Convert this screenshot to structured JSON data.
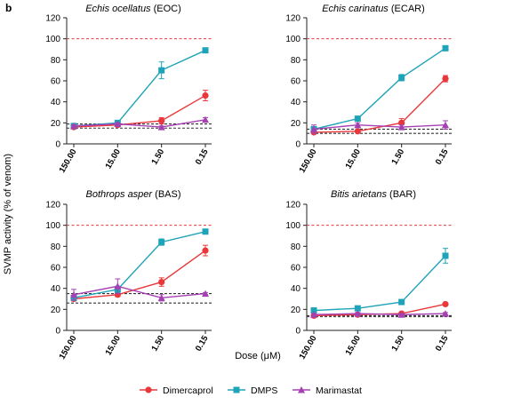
{
  "panel_label": "b",
  "ylabel": "SVMP activity (% of venom)",
  "xlabel": "Dose (μM)",
  "legend": [
    {
      "name": "Dimercaprol",
      "color": "#e8383b",
      "marker": "circle"
    },
    {
      "name": "DMPS",
      "color": "#1fa3b8",
      "marker": "square"
    },
    {
      "name": "Marimastat",
      "color": "#a540b3",
      "marker": "triangle"
    }
  ],
  "chart_data": [
    {
      "type": "line",
      "title_italic": "Echis ocellatus",
      "title_rest": " (EOC)",
      "categories": [
        "150.00",
        "15.00",
        "1.50",
        "0.15"
      ],
      "ylim": [
        0,
        120
      ],
      "yticks": [
        "0",
        "20",
        "40",
        "60",
        "80",
        "100",
        "120"
      ],
      "ref_line": 100,
      "control_lines": [
        15,
        19
      ],
      "series": [
        {
          "name": "Dimercaprol",
          "values": [
            16,
            18,
            22,
            46
          ],
          "err": [
            1,
            1,
            3,
            5
          ]
        },
        {
          "name": "DMPS",
          "values": [
            17,
            20,
            70,
            89
          ],
          "err": [
            1,
            1,
            8,
            1
          ]
        },
        {
          "name": "Marimastat",
          "values": [
            17,
            19,
            16,
            23
          ],
          "err": [
            1,
            1,
            1,
            2
          ]
        }
      ]
    },
    {
      "type": "line",
      "title_italic": "Echis carinatus",
      "title_rest": " (ECAR)",
      "categories": [
        "150.00",
        "15.00",
        "1.50",
        "0.15"
      ],
      "ylim": [
        0,
        120
      ],
      "yticks": [
        "0",
        "20",
        "40",
        "60",
        "80",
        "100",
        "120"
      ],
      "ref_line": 100,
      "control_lines": [
        10,
        14
      ],
      "series": [
        {
          "name": "Dimercaprol",
          "values": [
            11,
            12,
            20,
            62
          ],
          "err": [
            1,
            1,
            4,
            3
          ]
        },
        {
          "name": "DMPS",
          "values": [
            14,
            24,
            63,
            91
          ],
          "err": [
            1,
            1,
            3,
            1
          ]
        },
        {
          "name": "Marimastat",
          "values": [
            14,
            18,
            16,
            18
          ],
          "err": [
            4,
            2,
            2,
            4
          ]
        }
      ]
    },
    {
      "type": "line",
      "title_italic": "Bothrops asper",
      "title_rest": " (BAS)",
      "categories": [
        "150.00",
        "15.00",
        "1.50",
        "0.15"
      ],
      "ylim": [
        0,
        120
      ],
      "yticks": [
        "0",
        "20",
        "40",
        "60",
        "80",
        "100",
        "120"
      ],
      "ref_line": 100,
      "control_lines": [
        26,
        35
      ],
      "series": [
        {
          "name": "Dimercaprol",
          "values": [
            30,
            34,
            46,
            76
          ],
          "err": [
            2,
            2,
            4,
            5
          ]
        },
        {
          "name": "DMPS",
          "values": [
            31,
            39,
            84,
            94
          ],
          "err": [
            2,
            3,
            3,
            1
          ]
        },
        {
          "name": "Marimastat",
          "values": [
            34,
            42,
            31,
            35
          ],
          "err": [
            5,
            7,
            3,
            1
          ]
        }
      ]
    },
    {
      "type": "line",
      "title_italic": "Bitis arietans",
      "title_rest": " (BAR)",
      "categories": [
        "150.00",
        "15.00",
        "1.50",
        "0.15"
      ],
      "ylim": [
        0,
        120
      ],
      "yticks": [
        "0",
        "20",
        "40",
        "60",
        "80",
        "100",
        "120"
      ],
      "ref_line": 100,
      "control_lines": [
        13,
        14
      ],
      "series": [
        {
          "name": "Dimercaprol",
          "values": [
            14,
            15,
            16,
            25
          ],
          "err": [
            1,
            1,
            1,
            1
          ]
        },
        {
          "name": "DMPS",
          "values": [
            19,
            21,
            27,
            71
          ],
          "err": [
            1,
            1,
            1,
            7
          ]
        },
        {
          "name": "Marimastat",
          "values": [
            15,
            16,
            15,
            16
          ],
          "err": [
            1,
            1,
            1,
            1
          ]
        }
      ]
    }
  ]
}
